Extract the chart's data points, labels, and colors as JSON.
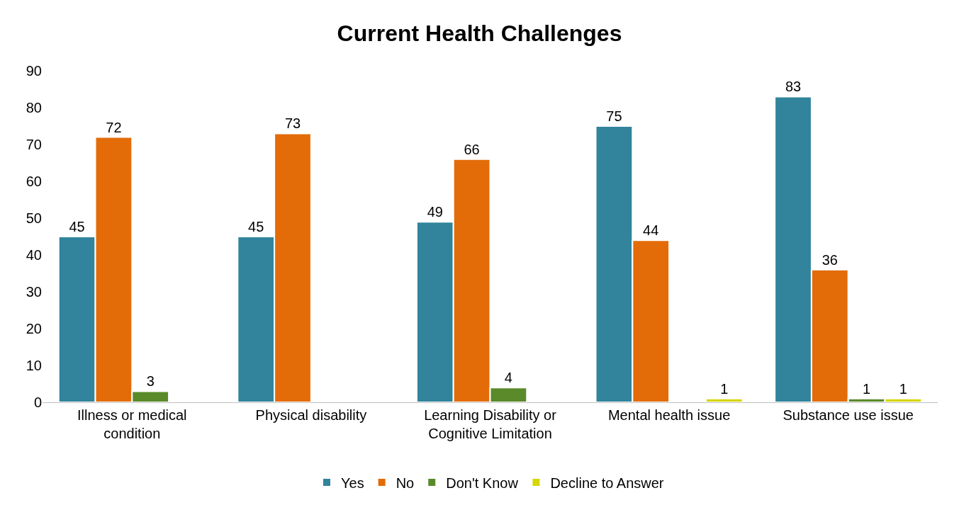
{
  "chart_data": {
    "type": "bar",
    "title": "Current Health Challenges",
    "categories": [
      "Illness or medical condition",
      "Physical disability",
      "Learning Disability or Cognitive Limitation",
      "Mental health issue",
      "Substance use issue"
    ],
    "series": [
      {
        "name": "Yes",
        "color": "#31849b",
        "values": [
          45,
          45,
          49,
          75,
          83
        ]
      },
      {
        "name": "No",
        "color": "#e36c09",
        "values": [
          72,
          73,
          66,
          44,
          36
        ]
      },
      {
        "name": "Don't Know",
        "color": "#5a8a2a",
        "values": [
          3,
          null,
          4,
          null,
          1
        ]
      },
      {
        "name": "Decline to Answer",
        "color": "#d6d600",
        "values": [
          null,
          null,
          null,
          1,
          1
        ]
      }
    ],
    "ylim": [
      0,
      90
    ],
    "yticks": [
      0,
      10,
      20,
      30,
      40,
      50,
      60,
      70,
      80,
      90
    ],
    "legend": "bottom",
    "data_labels": true
  }
}
